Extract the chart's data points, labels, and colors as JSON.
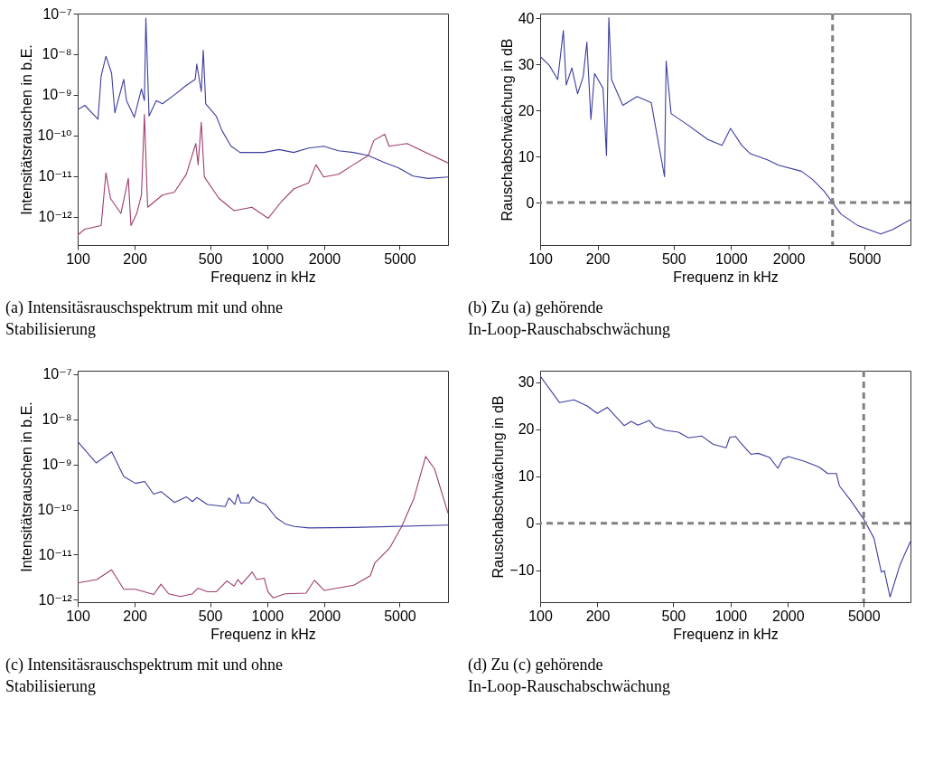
{
  "chart_data": [
    {
      "type": "line",
      "xlabel": "Frequenz in kHz",
      "ylabel": "Intensitätsrauschen in b.E.",
      "log": "xy",
      "xlim": [
        100,
        9000
      ],
      "ylim": [
        2e-13,
        1e-07
      ],
      "xticks": [
        100,
        200,
        500,
        1000,
        2000,
        5000
      ],
      "yticks": [
        {
          "value": 1e-07,
          "label": "10⁻⁷"
        },
        {
          "value": 1e-08,
          "label": "10⁻⁸"
        },
        {
          "value": 1e-09,
          "label": "10⁻⁹"
        },
        {
          "value": 1e-10,
          "label": "10⁻¹⁰"
        },
        {
          "value": 1e-11,
          "label": "10⁻¹¹"
        },
        {
          "value": 1e-12,
          "label": "10⁻¹²"
        }
      ],
      "annotations": [
        "(a) Intensitäsrauschspektrum mit und ohne Stabilisierung"
      ],
      "series": [
        {
          "color": "#3d3d9e",
          "x": [
            100,
            109,
            128,
            133,
            141,
            151,
            157,
            175,
            181,
            199,
            217,
            225,
            229,
            238,
            260,
            280,
            324,
            374,
            417,
            425,
            449,
            460,
            474,
            538,
            578,
            645,
            719,
            831,
            961,
            1152,
            1380,
            1655,
            1985,
            2378,
            2851,
            3417,
            4098,
            4910,
            5890,
            7060,
            9000
          ],
          "values": [
            4.3e-10,
            5.5e-10,
            2.5e-10,
            2.9e-09,
            8.9e-09,
            3.4e-09,
            3.6e-10,
            2.4e-09,
            7.2e-10,
            2.8e-10,
            1.4e-09,
            7.2e-10,
            7.7e-08,
            3e-10,
            7.2e-10,
            6e-10,
            1e-09,
            1.7e-09,
            2.4e-09,
            5.7e-09,
            1.2e-09,
            1.25e-08,
            6e-10,
            3e-10,
            1.3e-10,
            5.4e-11,
            3.8e-11,
            3.8e-11,
            3.8e-11,
            4.5e-11,
            3.8e-11,
            4.9e-11,
            5.4e-11,
            4.2e-11,
            3.8e-11,
            3.2e-11,
            2.2e-11,
            1.6e-11,
            1e-11,
            8.7e-12,
            9.5e-12
          ]
        },
        {
          "color": "#9e3d6e",
          "x": [
            100,
            109,
            133,
            141,
            149,
            169,
            185,
            191,
            205,
            217,
            225,
            234,
            280,
            324,
            374,
            420,
            432,
            449,
            466,
            557,
            669,
            831,
            1013,
            1194,
            1380,
            1655,
            1810,
            1985,
            2378,
            2851,
            3417,
            3650,
            4170,
            4400,
            5480,
            6340,
            9000
          ],
          "values": [
            3.5e-13,
            4.9e-13,
            6e-13,
            1.2e-11,
            2.8e-12,
            1.2e-12,
            8.7e-12,
            6e-13,
            1.2e-12,
            3.4e-12,
            3.3e-10,
            1.7e-12,
            3.4e-12,
            4e-12,
            1.1e-11,
            6.3e-11,
            1.9e-11,
            2.1e-10,
            9.5e-12,
            2.8e-12,
            1.4e-12,
            1.7e-12,
            9.1e-13,
            2.4e-12,
            4.8e-12,
            6.8e-12,
            1.9e-11,
            9.5e-12,
            1.1e-11,
            1.9e-11,
            3.2e-11,
            7.5e-11,
            1.07e-10,
            5.4e-11,
            6.3e-11,
            4.5e-11,
            2.1e-11
          ]
        }
      ]
    },
    {
      "type": "line",
      "xlabel": "Frequenz in kHz",
      "ylabel": "Rauschabschwächung in dB",
      "log": "x",
      "xlim": [
        100,
        8700
      ],
      "ylim": [
        -9.2,
        41
      ],
      "xticks": [
        100,
        200,
        500,
        1000,
        2000,
        5000
      ],
      "yticks": [
        0,
        10,
        20,
        30,
        40
      ],
      "annotations": [
        "(b) Zu (a) gehörende In-Loop-Rauschabschwächung"
      ],
      "ref_lines": [
        {
          "axis": "x",
          "value": 3400,
          "color": "#808080",
          "line_style": "dashed"
        },
        {
          "axis": "y",
          "value": 0,
          "color": "#808080",
          "line_style": "dashed"
        }
      ],
      "series": [
        {
          "color": "#3d3d9e",
          "x": [
            100,
            111.6,
            123.6,
            132.3,
            136.9,
            146.6,
            157,
            168,
            175.7,
            184.4,
            192.7,
            213.5,
            222.5,
            229,
            236.6,
            271,
            321.8,
            381.6,
            448,
            457,
            485,
            595,
            755,
            897,
            993,
            1138,
            1262,
            1549,
            1775,
            2334,
            2675,
            3068,
            3397,
            3767,
            4624,
            6070,
            6966,
            8690
          ],
          "values": [
            31.7,
            29.8,
            26.7,
            37.3,
            25.5,
            29.2,
            23.6,
            27.3,
            34.8,
            18.0,
            28,
            24.8,
            10.2,
            40.1,
            26.7,
            21.1,
            23,
            21.7,
            5.6,
            30.7,
            19.3,
            16.8,
            13.7,
            12.4,
            16.1,
            12.4,
            10.6,
            9.3,
            8.1,
            6.8,
            5,
            2.5,
            0,
            -2.5,
            -5,
            -6.8,
            -5.9,
            -3.7
          ]
        }
      ]
    },
    {
      "type": "line",
      "xlabel": "Frequenz in kHz",
      "ylabel": "Intensitätsrauschen in b.E.",
      "log": "xy",
      "xlim": [
        100,
        9000
      ],
      "ylim": [
        8.8e-13,
        1.2e-07
      ],
      "xticks": [
        100,
        200,
        500,
        1000,
        2000,
        5000
      ],
      "yticks": [
        {
          "value": 1e-07,
          "label": "10⁻⁷"
        },
        {
          "value": 1e-08,
          "label": "10⁻⁸"
        },
        {
          "value": 1e-09,
          "label": "10⁻⁹"
        },
        {
          "value": 1e-10,
          "label": "10⁻¹⁰"
        },
        {
          "value": 1e-11,
          "label": "10⁻¹¹"
        },
        {
          "value": 1e-12,
          "label": "10⁻¹²"
        }
      ],
      "annotations": [
        "(c) Intensitäsrauschspektrum mit und ohne Stabilisierung"
      ],
      "series": [
        {
          "color": "#3d3d9e",
          "x": [
            100,
            125.2,
            151.3,
            175,
            202,
            225.6,
            251.5,
            275.4,
            324.4,
            375,
            403.6,
            425.9,
            483.6,
            601,
            628,
            675,
            700,
            726,
            804,
            839.6,
            897,
            982,
            1114,
            1244,
            1387,
            1663,
            2866,
            9000
          ],
          "values": [
            3.2e-09,
            1.08e-09,
            1.9e-09,
            5.4e-10,
            3.8e-10,
            4.2e-10,
            2.2e-10,
            2.5e-10,
            1.43e-10,
            1.9e-10,
            1.5e-10,
            1.85e-10,
            1.29e-10,
            1.16e-10,
            1.8e-10,
            1.3e-10,
            2.2e-10,
            1.4e-10,
            1.4e-10,
            1.9e-10,
            1.5e-10,
            1.3e-10,
            6.6e-11,
            4.8e-11,
            4.2e-11,
            3.9e-11,
            4e-11,
            4.5e-11
          ]
        },
        {
          "color": "#9e3d6e",
          "x": [
            100,
            126,
            151,
            175,
            202,
            252,
            275,
            302,
            349,
            404,
            430,
            484,
            539,
            612,
            670,
            700,
            733,
            834,
            881,
            964,
            1008,
            1075,
            1244,
            1603,
            1775,
            2000,
            2866,
            3500,
            3696,
            4433,
            5128,
            5930,
            6856,
            7640,
            9000
          ],
          "values": [
            2.35e-12,
            2.8e-12,
            4.6e-12,
            1.7e-12,
            1.7e-12,
            1.3e-12,
            2.2e-12,
            1.35e-12,
            1.17e-12,
            1.35e-12,
            1.8e-12,
            1.5e-12,
            1.5e-12,
            2.6e-12,
            2e-12,
            2.8e-12,
            2.2e-12,
            4.1e-12,
            2.8e-12,
            3e-12,
            1.5e-12,
            1.1e-12,
            1.35e-12,
            1.4e-12,
            2.7e-12,
            1.6e-12,
            2.1e-12,
            3.4e-12,
            6.5e-12,
            1.4e-11,
            4.2e-11,
            1.7e-10,
            1.5e-09,
            8e-10,
            8.3e-11
          ]
        }
      ]
    },
    {
      "type": "line",
      "xlabel": "Frequenz in kHz",
      "ylabel": "Rauschabschwächung in dB",
      "log": "x",
      "xlim": [
        100,
        8800
      ],
      "ylim": [
        -16.8,
        32.5
      ],
      "xticks": [
        100,
        200,
        500,
        1000,
        2000,
        5000
      ],
      "yticks": [
        {
          "value": -10,
          "label": "−10"
        },
        0,
        10,
        20,
        30
      ],
      "annotations": [
        "(d) Zu (c) gehörende In-Loop-Rauschabschwächung"
      ],
      "ref_lines": [
        {
          "axis": "x",
          "value": 5000,
          "color": "#808080",
          "line_style": "dashed"
        },
        {
          "axis": "y",
          "value": 0,
          "color": "#808080",
          "line_style": "dashed"
        }
      ],
      "series": [
        {
          "color": "#3d3d9e",
          "x": [
            100,
            126.5,
            150.7,
            176.5,
            199.5,
            225.5,
            276.4,
            300.6,
            325.8,
            374.9,
            401.9,
            454.5,
            532.3,
            601,
            704.5,
            810.6,
            948.5,
            989.5,
            1061,
            1130,
            1278,
            1395,
            1606,
            1771,
            1879,
            2015,
            2443,
            2912,
            3236,
            3594,
            3722,
            4284,
            5012,
            5662,
            6186,
            6411,
            6875,
            7763,
            8786
          ],
          "values": [
            31.4,
            25.7,
            26.3,
            25,
            23.4,
            24.7,
            20.8,
            21.7,
            20.9,
            21.9,
            20.5,
            19.8,
            19.4,
            18.2,
            18.6,
            16.8,
            16.1,
            18.3,
            18.5,
            17.1,
            14.7,
            14.9,
            14,
            11.7,
            13.7,
            14.2,
            13.2,
            12,
            10.6,
            10.6,
            8,
            4.8,
            0.8,
            -3.2,
            -10.4,
            -10.1,
            -15.7,
            -8.8,
            -3.9
          ]
        }
      ]
    }
  ]
}
